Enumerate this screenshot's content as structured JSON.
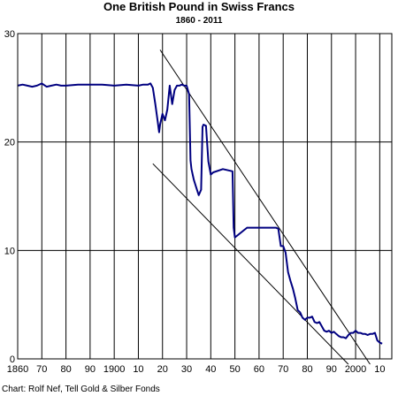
{
  "chart_data": {
    "type": "line",
    "title": "One British Pound in Swiss Francs",
    "subtitle": "1860  -  2011",
    "source": "Chart: Rolf Nef, Tell Gold & Silber Fonds",
    "xlim": [
      1860,
      2015
    ],
    "ylim": [
      0,
      30
    ],
    "grid": true,
    "x_ticks": [
      1860,
      1870,
      1880,
      1890,
      1900,
      1910,
      1920,
      1930,
      1940,
      1950,
      1960,
      1970,
      1980,
      1990,
      2000,
      2010
    ],
    "x_tick_labels": [
      "1860",
      "70",
      "80",
      "90",
      "1900",
      "10",
      "20",
      "30",
      "40",
      "50",
      "60",
      "70",
      "80",
      "90",
      "2000",
      "10"
    ],
    "y_ticks": [
      0,
      10,
      20,
      30
    ],
    "y_tick_labels": [
      "0",
      "10",
      "20",
      "30"
    ],
    "line_color": "#000080",
    "trend_color": "#000000",
    "series": [
      {
        "x": [
          1860,
          1862,
          1864,
          1866,
          1868,
          1870,
          1872,
          1874,
          1876,
          1878,
          1880,
          1885,
          1890,
          1895,
          1900,
          1905,
          1910,
          1912,
          1914,
          1915,
          1916,
          1917,
          1918,
          1918.6,
          1919,
          1920,
          1921,
          1922,
          1923,
          1924,
          1925,
          1926,
          1927,
          1928,
          1929,
          1930,
          1931,
          1931.6,
          1932,
          1933,
          1934,
          1935,
          1936,
          1936.6,
          1937,
          1938,
          1939,
          1940,
          1941,
          1945,
          1949,
          1949.5,
          1950,
          1955,
          1960,
          1965,
          1967,
          1968,
          1969,
          1970,
          1971,
          1972,
          1973,
          1974,
          1975,
          1976,
          1977,
          1978,
          1979,
          1980,
          1981,
          1982,
          1983,
          1984,
          1985,
          1986,
          1987,
          1988,
          1989,
          1990,
          1991,
          1992,
          1993,
          1994,
          1995,
          1996,
          1997,
          1998,
          1999,
          2000,
          2001,
          2002,
          2003,
          2004,
          2005,
          2006,
          2007,
          2008,
          2009,
          2010,
          2011
        ],
        "y": [
          25.2,
          25.3,
          25.2,
          25.1,
          25.2,
          25.4,
          25.1,
          25.2,
          25.3,
          25.2,
          25.2,
          25.3,
          25.3,
          25.3,
          25.2,
          25.3,
          25.2,
          25.3,
          25.3,
          25.4,
          25.0,
          23.5,
          21.9,
          20.9,
          21.6,
          22.6,
          22.0,
          23.0,
          25.2,
          23.5,
          24.8,
          25.2,
          25.2,
          25.3,
          25.2,
          25.2,
          24.4,
          18.3,
          17.5,
          16.5,
          15.8,
          15.1,
          15.6,
          21.4,
          21.6,
          21.5,
          18.2,
          17.0,
          17.2,
          17.5,
          17.3,
          12.1,
          11.2,
          12.1,
          12.1,
          12.1,
          12.1,
          12.0,
          10.4,
          10.4,
          9.8,
          8.0,
          7.2,
          6.5,
          5.6,
          4.5,
          4.3,
          3.8,
          3.6,
          3.8,
          3.8,
          3.9,
          3.4,
          3.3,
          3.4,
          3.0,
          2.6,
          2.5,
          2.6,
          2.4,
          2.5,
          2.3,
          2.1,
          2.0,
          2.0,
          1.9,
          2.2,
          2.4,
          2.4,
          2.6,
          2.4,
          2.4,
          2.3,
          2.3,
          2.2,
          2.3,
          2.3,
          2.4,
          1.7,
          1.5,
          1.4
        ]
      }
    ],
    "trend_lines": [
      {
        "x": [
          1919,
          2006
        ],
        "y": [
          28.5,
          -0.5
        ]
      },
      {
        "x": [
          1916,
          1997
        ],
        "y": [
          18.0,
          -0.5
        ]
      }
    ]
  }
}
